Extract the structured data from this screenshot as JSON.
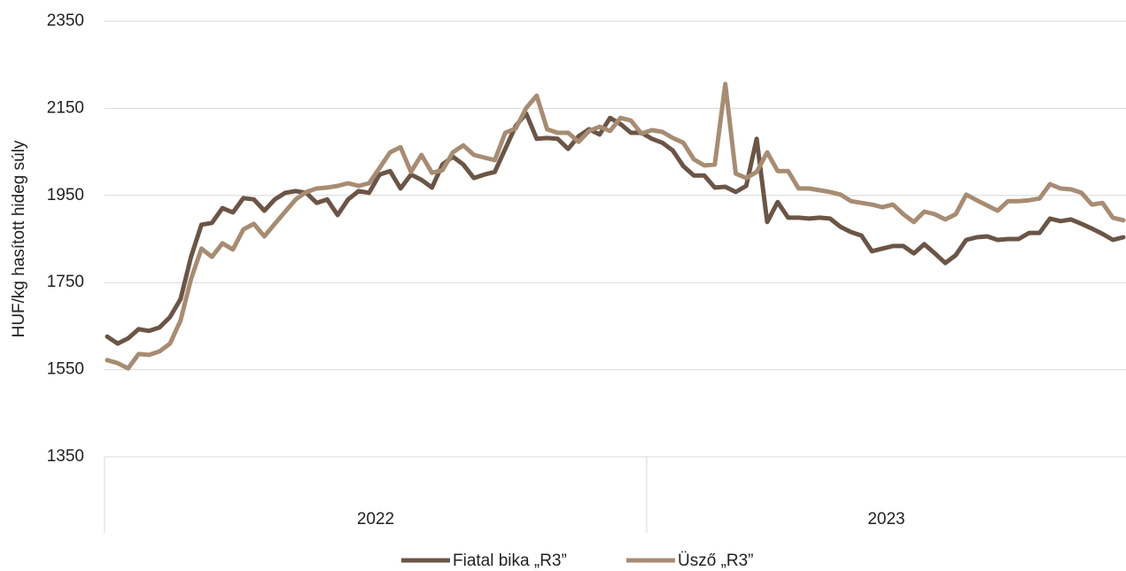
{
  "chart_data": {
    "type": "line",
    "y_label": "HUF/kg hasított hideg súly",
    "categories": [
      null,
      null,
      null,
      null,
      null,
      null,
      null,
      null,
      null,
      null,
      null,
      null,
      null,
      null,
      null,
      null,
      null,
      null,
      null,
      null,
      null,
      null,
      null,
      null,
      null,
      null,
      null,
      null,
      null,
      null,
      null,
      null,
      null,
      null,
      null,
      null,
      null,
      null,
      null,
      null,
      null,
      null,
      null,
      null,
      null,
      null,
      null,
      null,
      null,
      null,
      null,
      null,
      null,
      null,
      null,
      null,
      null,
      null,
      null,
      null,
      null,
      null,
      null,
      null,
      null,
      null,
      null,
      null,
      null,
      null,
      null,
      null,
      null,
      null,
      null,
      null,
      null,
      null,
      null,
      null,
      null,
      null,
      null,
      null,
      null,
      null,
      null,
      null,
      null,
      null,
      null,
      null,
      null,
      null,
      null,
      null,
      null,
      null
    ],
    "x_groups": [
      {
        "label": "2022",
        "count": 52
      },
      {
        "label": "2023",
        "count": 46
      }
    ],
    "ylim": [
      1350,
      2350
    ],
    "yticks": [
      1350,
      1550,
      1750,
      1950,
      2150,
      2350
    ],
    "grid": true,
    "legend": "bottom",
    "series": [
      {
        "name": "Fiatal bika „R3”",
        "color": "#6b5546",
        "values": [
          1626,
          1610,
          1622,
          1643,
          1639,
          1647,
          1671,
          1712,
          1809,
          1883,
          1887,
          1921,
          1911,
          1944,
          1941,
          1915,
          1941,
          1956,
          1960,
          1956,
          1933,
          1941,
          1905,
          1941,
          1960,
          1956,
          1998,
          2006,
          1966,
          1998,
          1986,
          1968,
          2021,
          2039,
          2021,
          1990,
          1998,
          2004,
          2057,
          2110,
          2138,
          2080,
          2082,
          2080,
          2057,
          2086,
          2102,
          2090,
          2128,
          2114,
          2094,
          2094,
          2080,
          2071,
          2053,
          2017,
          1996,
          1996,
          1968,
          1970,
          1958,
          1972,
          2080,
          1889,
          1935,
          1899,
          1899,
          1897,
          1899,
          1897,
          1878,
          1866,
          1858,
          1822,
          1828,
          1834,
          1834,
          1817,
          1838,
          1817,
          1795,
          1813,
          1848,
          1854,
          1856,
          1848,
          1850,
          1850,
          1864,
          1864,
          1897,
          1891,
          1895,
          1885,
          1874,
          1862,
          1848,
          1854
        ]
      },
      {
        "name": "Üsző „R3”",
        "color": "#a78c73",
        "values": [
          1572,
          1565,
          1553,
          1586,
          1584,
          1592,
          1610,
          1663,
          1758,
          1828,
          1809,
          1840,
          1826,
          1872,
          1885,
          1856,
          1885,
          1913,
          1941,
          1958,
          1966,
          1968,
          1972,
          1978,
          1972,
          1978,
          2013,
          2049,
          2061,
          2004,
          2043,
          2002,
          2008,
          2049,
          2065,
          2043,
          2037,
          2031,
          2094,
          2104,
          2151,
          2179,
          2102,
          2094,
          2094,
          2073,
          2098,
          2108,
          2098,
          2128,
          2122,
          2092,
          2100,
          2096,
          2082,
          2071,
          2033,
          2019,
          2021,
          2206,
          2000,
          1990,
          2004,
          2049,
          2006,
          2006,
          1966,
          1966,
          1962,
          1958,
          1952,
          1937,
          1933,
          1929,
          1923,
          1929,
          1907,
          1889,
          1913,
          1907,
          1895,
          1907,
          1952,
          1939,
          1927,
          1915,
          1937,
          1937,
          1939,
          1943,
          1976,
          1966,
          1964,
          1956,
          1929,
          1933,
          1899,
          1893
        ]
      }
    ]
  }
}
